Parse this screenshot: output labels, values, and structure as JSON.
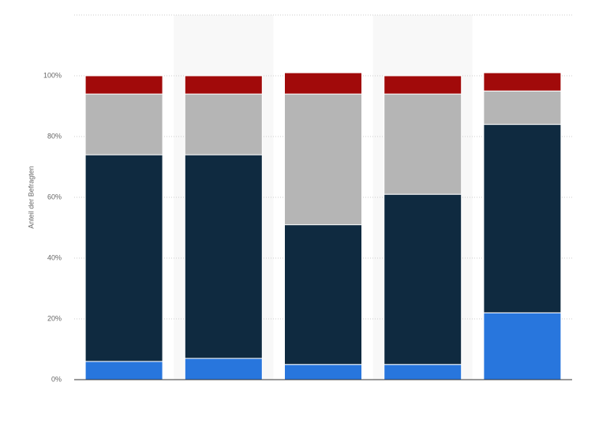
{
  "chart_data": {
    "type": "stacked-bar",
    "y_label": "Anteil der Befragten",
    "categories": [
      null,
      null,
      null,
      null,
      null
    ],
    "series": [
      {
        "color": "#2876dd",
        "values": [
          6,
          7,
          5,
          5,
          22
        ]
      },
      {
        "color": "#0f2a40",
        "values": [
          68,
          67,
          46,
          56,
          62
        ]
      },
      {
        "color": "#b5b5b5",
        "values": [
          20,
          20,
          43,
          33,
          11
        ]
      },
      {
        "color": "#a10a0a",
        "values": [
          6,
          6,
          7,
          6,
          6
        ]
      }
    ],
    "ylim": [
      0,
      120
    ],
    "yticks": [
      {
        "value": 0,
        "label": "0%"
      },
      {
        "value": 20,
        "label": "20%"
      },
      {
        "value": 40,
        "label": "40%"
      },
      {
        "value": 60,
        "label": "60%"
      },
      {
        "value": 80,
        "label": "80%"
      },
      {
        "value": 100,
        "label": "100%"
      }
    ],
    "grid": true
  }
}
